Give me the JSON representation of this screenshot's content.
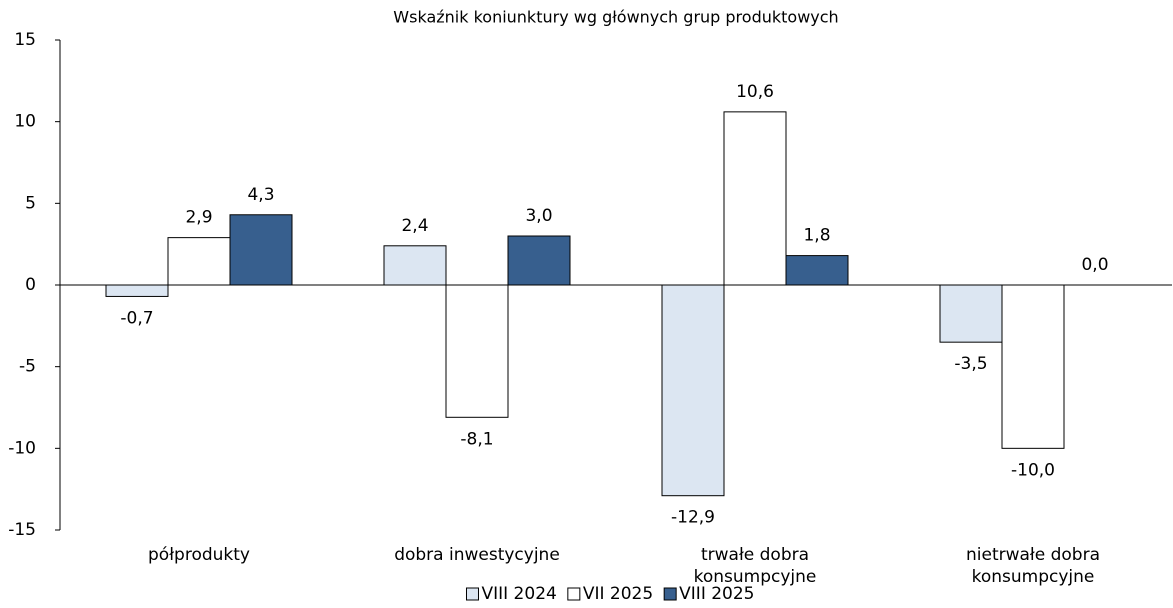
{
  "chart_data": {
    "type": "bar",
    "title": "Wskaźnik koniunktury wg głównych grup produktowych",
    "categories": [
      "półprodukty",
      "dobra inwestycyjne",
      "trwałe dobra konsumpcyjne",
      "nietrwałe dobra konsumpcyjne"
    ],
    "series": [
      {
        "name": "VIII 2024",
        "color": "#dce6f2",
        "values": [
          -0.7,
          2.4,
          -12.9,
          -3.5
        ],
        "value_labels": [
          "-0,7",
          "2,4",
          "-12,9",
          "-3,5"
        ]
      },
      {
        "name": "VII 2025",
        "color": "#ffffff",
        "values": [
          2.9,
          -8.1,
          10.6,
          -10.0
        ],
        "value_labels": [
          "2,9",
          "-8,1",
          "10,6",
          "-10,0"
        ]
      },
      {
        "name": "VIII 2025",
        "color": "#375f8e",
        "values": [
          4.3,
          3.0,
          1.8,
          0.0
        ],
        "value_labels": [
          "4,3",
          "3,0",
          "1,8",
          "0,0"
        ]
      }
    ],
    "ylim": [
      -15,
      15
    ],
    "yticks": [
      15,
      10,
      5,
      0,
      -5,
      -10,
      -15
    ],
    "legend": "bottom"
  }
}
